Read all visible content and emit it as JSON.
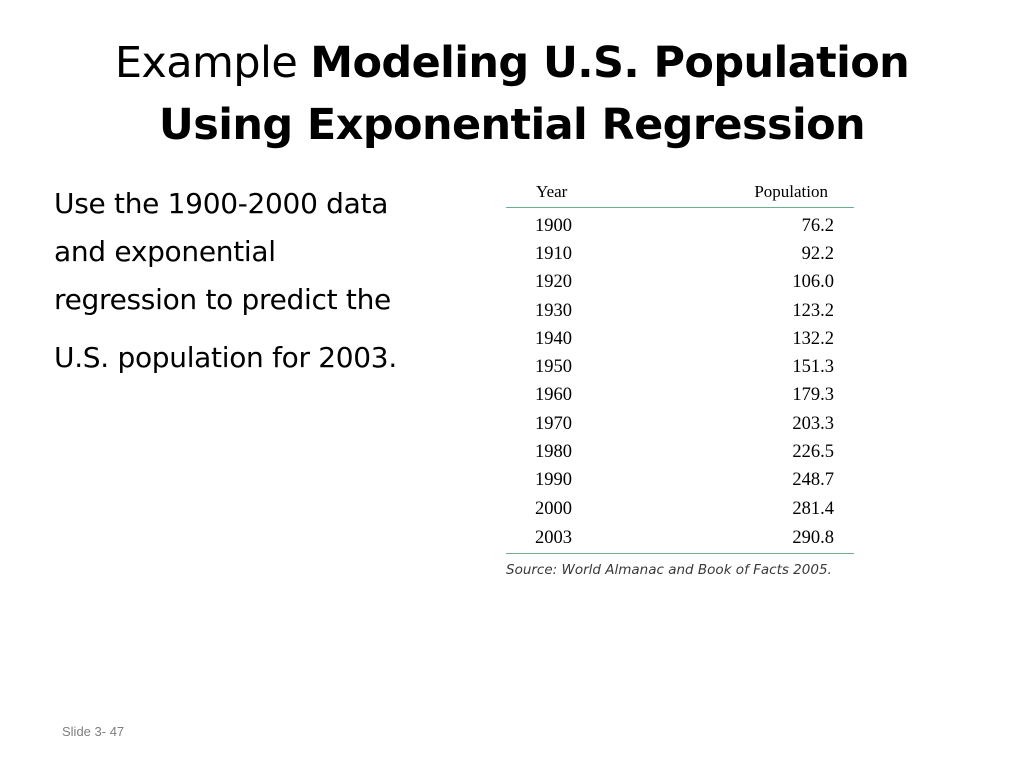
{
  "title": {
    "prefix": "Example",
    "bold_line1": "Modeling U.S. Population",
    "bold_line2": "Using Exponential Regression"
  },
  "body": {
    "lines": [
      "Use the 1900-2000 data",
      "and exponential",
      "regression to predict the",
      "U.S. population for 2003."
    ]
  },
  "table": {
    "headers": [
      "Year",
      "Population"
    ],
    "rows": [
      [
        "1900",
        "76.2"
      ],
      [
        "1910",
        "92.2"
      ],
      [
        "1920",
        "106.0"
      ],
      [
        "1930",
        "123.2"
      ],
      [
        "1940",
        "132.2"
      ],
      [
        "1950",
        "151.3"
      ],
      [
        "1960",
        "179.3"
      ],
      [
        "1970",
        "203.3"
      ],
      [
        "1980",
        "226.5"
      ],
      [
        "1990",
        "248.7"
      ],
      [
        "2000",
        "281.4"
      ],
      [
        "2003",
        "290.8"
      ]
    ],
    "source": "Source: World Almanac and Book of Facts 2005.",
    "rule_color": "#6fae8c"
  },
  "footer": {
    "slide_number": "Slide 3- 47"
  }
}
